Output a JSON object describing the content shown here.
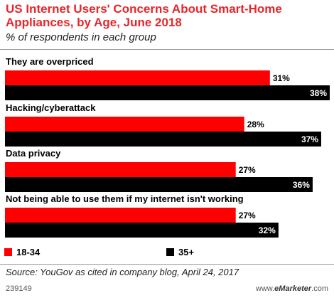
{
  "header": {
    "title": "US Internet Users' Concerns About Smart-Home Appliances, by Age, June 2018",
    "subtitle": "% of respondents in each group"
  },
  "chart_data": {
    "type": "bar",
    "orientation": "horizontal",
    "categories": [
      "They are overpriced",
      "Hacking/cyberattack",
      "Data privacy",
      "Not being able to use them if my internet isn't working"
    ],
    "series": [
      {
        "name": "18-34",
        "color": "#ff0000",
        "values": [
          31,
          28,
          27,
          27
        ],
        "labels": [
          "31%",
          "28%",
          "27%",
          "27%"
        ]
      },
      {
        "name": "35+",
        "color": "#000000",
        "values": [
          38,
          37,
          36,
          32
        ],
        "labels": [
          "38%",
          "37%",
          "36%",
          "32%"
        ]
      }
    ],
    "xlim": [
      0,
      38
    ],
    "grid": false,
    "legend_position": "bottom"
  },
  "legend": {
    "items": [
      {
        "label": "18-34",
        "color": "#ff0000"
      },
      {
        "label": "35+",
        "color": "#000000"
      }
    ]
  },
  "footer": {
    "source": "Source: YouGov as cited in company blog, April 24, 2017",
    "chart_id": "239149",
    "credit_prefix": "www.",
    "credit_brand": "eMarketer",
    "credit_suffix": ".com"
  }
}
